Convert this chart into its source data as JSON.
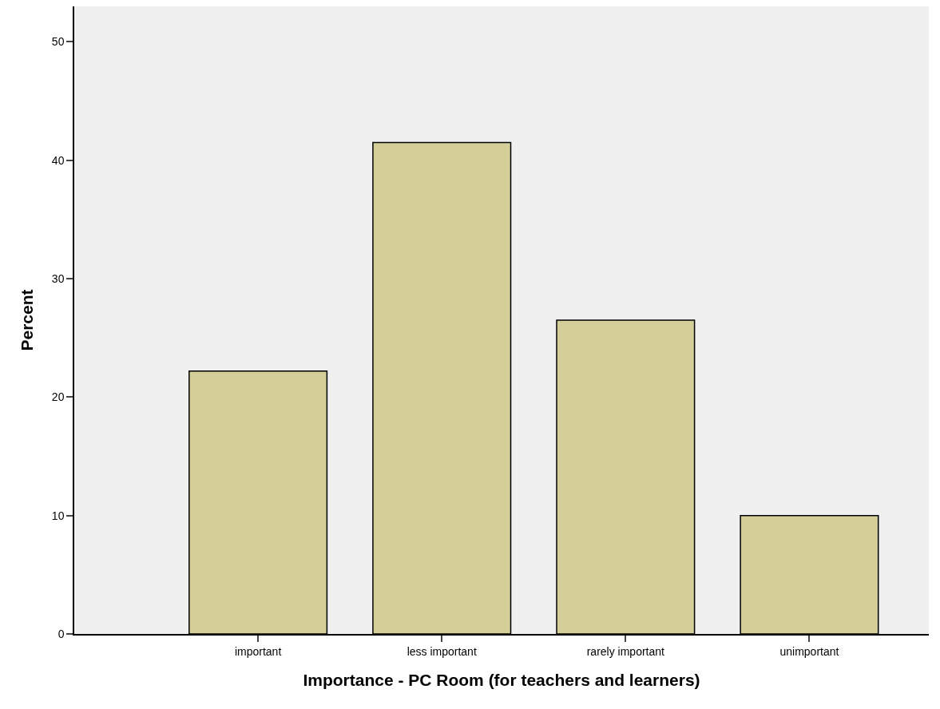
{
  "chart_data": {
    "type": "bar",
    "xlabel": "Importance - PC Room (for teachers and learners)",
    "ylabel": "Percent",
    "categories": [
      "important",
      "less important",
      "rarely important",
      "unimportant"
    ],
    "values": [
      22.2,
      41.5,
      26.5,
      10.0
    ],
    "color": "#d4ce99",
    "ylim": [
      0,
      53
    ],
    "yticks": [
      0,
      10,
      20,
      30,
      40,
      50
    ],
    "grid": false,
    "legend": false
  }
}
